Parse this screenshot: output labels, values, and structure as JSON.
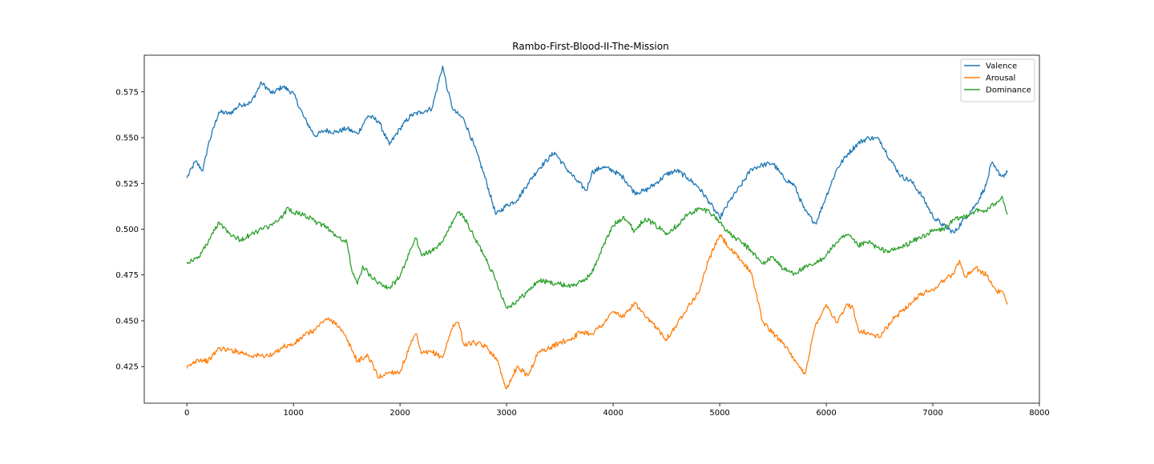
{
  "chart_data": {
    "type": "line",
    "title": "Rambo-First-Blood-II-The-Mission",
    "xlabel": "",
    "ylabel": "",
    "xlim": [
      -400,
      8000
    ],
    "ylim": [
      0.405,
      0.595
    ],
    "xticks": [
      0,
      1000,
      2000,
      3000,
      4000,
      5000,
      6000,
      7000,
      8000
    ],
    "yticks": [
      0.425,
      0.45,
      0.475,
      0.5,
      0.525,
      0.55,
      0.575
    ],
    "ytick_labels": [
      "0.425",
      "0.450",
      "0.475",
      "0.500",
      "0.525",
      "0.550",
      "0.575"
    ],
    "grid": false,
    "legend": "top-right",
    "series": [
      {
        "name": "Valence",
        "color": "#1f77b4",
        "x": [
          0,
          80,
          150,
          200,
          300,
          400,
          500,
          600,
          700,
          800,
          900,
          1000,
          1100,
          1200,
          1300,
          1400,
          1500,
          1600,
          1700,
          1800,
          1900,
          2000,
          2100,
          2200,
          2300,
          2400,
          2450,
          2500,
          2600,
          2700,
          2800,
          2900,
          3000,
          3100,
          3200,
          3300,
          3450,
          3550,
          3650,
          3750,
          3800,
          3900,
          4000,
          4100,
          4200,
          4300,
          4400,
          4500,
          4600,
          4700,
          4800,
          4900,
          5000,
          5100,
          5200,
          5300,
          5400,
          5500,
          5600,
          5700,
          5800,
          5900,
          6000,
          6100,
          6200,
          6300,
          6400,
          6500,
          6600,
          6700,
          6800,
          6900,
          7000,
          7100,
          7200,
          7300,
          7400,
          7500,
          7550,
          7600,
          7650,
          7700
        ],
        "values": [
          0.528,
          0.537,
          0.532,
          0.546,
          0.564,
          0.563,
          0.568,
          0.569,
          0.58,
          0.574,
          0.578,
          0.574,
          0.561,
          0.551,
          0.554,
          0.553,
          0.555,
          0.552,
          0.562,
          0.559,
          0.546,
          0.555,
          0.562,
          0.564,
          0.566,
          0.589,
          0.575,
          0.565,
          0.56,
          0.545,
          0.528,
          0.508,
          0.513,
          0.516,
          0.525,
          0.533,
          0.542,
          0.534,
          0.527,
          0.521,
          0.531,
          0.534,
          0.532,
          0.528,
          0.52,
          0.521,
          0.525,
          0.53,
          0.532,
          0.528,
          0.523,
          0.515,
          0.506,
          0.516,
          0.524,
          0.533,
          0.535,
          0.536,
          0.528,
          0.524,
          0.51,
          0.503,
          0.518,
          0.533,
          0.541,
          0.547,
          0.55,
          0.549,
          0.538,
          0.529,
          0.526,
          0.518,
          0.507,
          0.502,
          0.498,
          0.506,
          0.513,
          0.524,
          0.536,
          0.532,
          0.529,
          0.531
        ]
      },
      {
        "name": "Arousal",
        "color": "#ff7f0e",
        "x": [
          0,
          100,
          200,
          300,
          400,
          500,
          600,
          700,
          800,
          900,
          1000,
          1100,
          1200,
          1300,
          1400,
          1500,
          1600,
          1700,
          1800,
          1900,
          2000,
          2100,
          2150,
          2200,
          2300,
          2400,
          2500,
          2550,
          2600,
          2700,
          2800,
          2900,
          3000,
          3100,
          3200,
          3300,
          3400,
          3500,
          3600,
          3700,
          3800,
          3900,
          4000,
          4100,
          4200,
          4300,
          4400,
          4500,
          4600,
          4700,
          4800,
          4900,
          4950,
          5000,
          5100,
          5200,
          5300,
          5400,
          5500,
          5600,
          5700,
          5800,
          5900,
          6000,
          6100,
          6200,
          6250,
          6300,
          6400,
          6500,
          6600,
          6700,
          6800,
          6900,
          7000,
          7100,
          7200,
          7250,
          7300,
          7400,
          7500,
          7600,
          7650,
          7700
        ],
        "values": [
          0.424,
          0.429,
          0.428,
          0.435,
          0.434,
          0.433,
          0.431,
          0.431,
          0.431,
          0.436,
          0.437,
          0.442,
          0.445,
          0.451,
          0.449,
          0.44,
          0.428,
          0.431,
          0.419,
          0.422,
          0.422,
          0.437,
          0.443,
          0.432,
          0.433,
          0.43,
          0.448,
          0.449,
          0.437,
          0.438,
          0.436,
          0.43,
          0.413,
          0.425,
          0.42,
          0.433,
          0.435,
          0.438,
          0.44,
          0.444,
          0.443,
          0.448,
          0.455,
          0.452,
          0.46,
          0.452,
          0.447,
          0.44,
          0.448,
          0.458,
          0.465,
          0.484,
          0.49,
          0.497,
          0.489,
          0.483,
          0.476,
          0.45,
          0.443,
          0.438,
          0.428,
          0.421,
          0.448,
          0.459,
          0.449,
          0.459,
          0.457,
          0.445,
          0.443,
          0.441,
          0.449,
          0.455,
          0.46,
          0.465,
          0.467,
          0.472,
          0.476,
          0.483,
          0.474,
          0.479,
          0.475,
          0.466,
          0.466,
          0.459
        ]
      },
      {
        "name": "Dominance",
        "color": "#2ca02c",
        "x": [
          0,
          100,
          200,
          300,
          400,
          500,
          600,
          700,
          800,
          900,
          950,
          1000,
          1100,
          1200,
          1300,
          1400,
          1500,
          1550,
          1600,
          1650,
          1700,
          1800,
          1900,
          2000,
          2100,
          2150,
          2200,
          2300,
          2400,
          2500,
          2550,
          2600,
          2700,
          2800,
          2900,
          3000,
          3100,
          3200,
          3300,
          3400,
          3500,
          3600,
          3700,
          3800,
          3900,
          4000,
          4100,
          4200,
          4300,
          4400,
          4500,
          4600,
          4700,
          4800,
          4900,
          5000,
          5100,
          5200,
          5300,
          5400,
          5500,
          5600,
          5700,
          5800,
          5900,
          6000,
          6100,
          6200,
          6300,
          6400,
          6500,
          6600,
          6700,
          6800,
          6900,
          7000,
          7100,
          7200,
          7300,
          7400,
          7500,
          7600,
          7650,
          7700
        ],
        "values": [
          0.482,
          0.484,
          0.493,
          0.504,
          0.498,
          0.494,
          0.497,
          0.5,
          0.502,
          0.507,
          0.512,
          0.509,
          0.508,
          0.504,
          0.502,
          0.496,
          0.493,
          0.477,
          0.47,
          0.48,
          0.476,
          0.471,
          0.468,
          0.474,
          0.489,
          0.495,
          0.486,
          0.488,
          0.493,
          0.505,
          0.509,
          0.507,
          0.495,
          0.485,
          0.472,
          0.457,
          0.461,
          0.466,
          0.472,
          0.471,
          0.47,
          0.469,
          0.471,
          0.476,
          0.49,
          0.502,
          0.507,
          0.499,
          0.506,
          0.502,
          0.498,
          0.502,
          0.508,
          0.511,
          0.51,
          0.504,
          0.497,
          0.493,
          0.488,
          0.481,
          0.485,
          0.478,
          0.476,
          0.479,
          0.481,
          0.486,
          0.493,
          0.497,
          0.491,
          0.493,
          0.489,
          0.488,
          0.49,
          0.493,
          0.496,
          0.499,
          0.5,
          0.505,
          0.507,
          0.51,
          0.51,
          0.515,
          0.518,
          0.508
        ]
      }
    ]
  }
}
